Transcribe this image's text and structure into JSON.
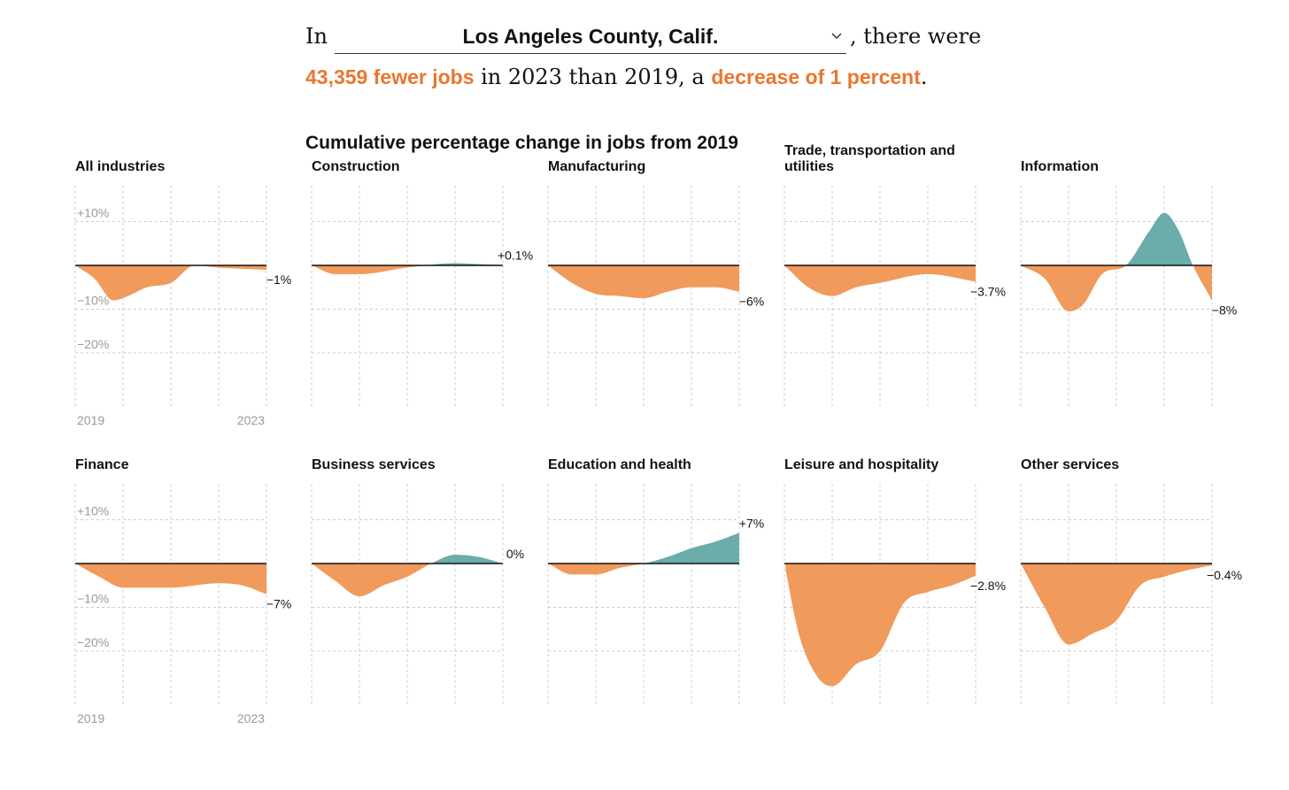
{
  "intro": {
    "prefix": "In",
    "county": "Los Angeles County, Calif.",
    "suffix": ", there were",
    "jobs_change": "43,359 fewer jobs",
    "middle": " in 2023 than 2019, a ",
    "pct_change": "decrease of 1 percent",
    "end": "."
  },
  "chart_title": "Cumulative percentage change in jobs from 2019",
  "colors": {
    "negative": "#f09a5c",
    "positive": "#6aadab",
    "highlight": "#e8772e",
    "grid": "#cccccc"
  },
  "axis": {
    "y_ticks": [
      "+10%",
      "−10%",
      "−20%"
    ],
    "x_ticks": [
      "2019",
      "2023"
    ]
  },
  "chart_data": [
    {
      "type": "area",
      "title": "All industries",
      "end_label": "−1%",
      "x": [
        2019,
        2020,
        2021,
        2022,
        2023
      ],
      "knots": [
        [
          0,
          0
        ],
        [
          0.4,
          -3
        ],
        [
          0.8,
          -8
        ],
        [
          1.1,
          -7
        ],
        [
          1.5,
          -5
        ],
        [
          2,
          -4
        ],
        [
          2.5,
          0
        ],
        [
          3,
          -0.5
        ],
        [
          4,
          -1
        ]
      ],
      "ylim": [
        -33,
        18
      ]
    },
    {
      "type": "area",
      "title": "Construction",
      "end_label": "+0.1%",
      "x": [
        2019,
        2020,
        2021,
        2022,
        2023
      ],
      "knots": [
        [
          0,
          0
        ],
        [
          0.5,
          -2
        ],
        [
          1,
          -2
        ],
        [
          2,
          -0.5
        ],
        [
          3,
          0.5
        ],
        [
          3.5,
          0.3
        ],
        [
          4,
          0.1
        ]
      ],
      "ylim": [
        -33,
        18
      ]
    },
    {
      "type": "area",
      "title": "Manufacturing",
      "end_label": "−6%",
      "x": [
        2019,
        2020,
        2021,
        2022,
        2023
      ],
      "knots": [
        [
          0,
          0
        ],
        [
          0.5,
          -4
        ],
        [
          1,
          -6.5
        ],
        [
          1.5,
          -7
        ],
        [
          2,
          -7.5
        ],
        [
          2.5,
          -6
        ],
        [
          3,
          -5
        ],
        [
          3.5,
          -5
        ],
        [
          4,
          -6
        ]
      ],
      "ylim": [
        -33,
        18
      ]
    },
    {
      "type": "area",
      "title": "Trade, transportation and utilities",
      "end_label": "−3.7%",
      "x": [
        2019,
        2020,
        2021,
        2022,
        2023
      ],
      "knots": [
        [
          0,
          0
        ],
        [
          0.5,
          -5
        ],
        [
          1,
          -7
        ],
        [
          1.5,
          -5
        ],
        [
          2,
          -4
        ],
        [
          3,
          -2
        ],
        [
          4,
          -3.7
        ]
      ],
      "ylim": [
        -33,
        18
      ]
    },
    {
      "type": "area",
      "title": "Information",
      "end_label": "−8%",
      "x": [
        2019,
        2020,
        2021,
        2022,
        2023
      ],
      "knots": [
        [
          0,
          0
        ],
        [
          0.5,
          -3
        ],
        [
          1,
          -10.5
        ],
        [
          1.3,
          -9
        ],
        [
          1.7,
          -2
        ],
        [
          2.2,
          0
        ],
        [
          2.7,
          8
        ],
        [
          3,
          12
        ],
        [
          3.3,
          8
        ],
        [
          3.6,
          0
        ],
        [
          4,
          -8
        ]
      ],
      "ylim": [
        -33,
        18
      ]
    },
    {
      "type": "area",
      "title": "Finance",
      "end_label": "−7%",
      "x": [
        2019,
        2020,
        2021,
        2022,
        2023
      ],
      "knots": [
        [
          0,
          0
        ],
        [
          0.5,
          -3
        ],
        [
          1,
          -5.5
        ],
        [
          2,
          -5.5
        ],
        [
          3,
          -4.5
        ],
        [
          3.5,
          -5
        ],
        [
          4,
          -7
        ]
      ],
      "ylim": [
        -33,
        18
      ]
    },
    {
      "type": "area",
      "title": "Business services",
      "end_label": "0%",
      "x": [
        2019,
        2020,
        2021,
        2022,
        2023
      ],
      "knots": [
        [
          0,
          0
        ],
        [
          0.5,
          -4
        ],
        [
          1,
          -7.5
        ],
        [
          1.5,
          -5
        ],
        [
          2,
          -3
        ],
        [
          2.5,
          0
        ],
        [
          3,
          2
        ],
        [
          3.5,
          1.5
        ],
        [
          4,
          0
        ]
      ],
      "ylim": [
        -33,
        18
      ]
    },
    {
      "type": "area",
      "title": "Education and health",
      "end_label": "+7%",
      "x": [
        2019,
        2020,
        2021,
        2022,
        2023
      ],
      "knots": [
        [
          0,
          0
        ],
        [
          0.5,
          -2.5
        ],
        [
          1,
          -2.5
        ],
        [
          1.5,
          -1
        ],
        [
          2,
          0
        ],
        [
          2.5,
          1.5
        ],
        [
          3,
          3.5
        ],
        [
          3.5,
          5
        ],
        [
          4,
          7
        ]
      ],
      "ylim": [
        -33,
        18
      ]
    },
    {
      "type": "area",
      "title": "Leisure and hospitality",
      "end_label": "−2.8%",
      "x": [
        2019,
        2020,
        2021,
        2022,
        2023
      ],
      "knots": [
        [
          0,
          0
        ],
        [
          0.3,
          -16
        ],
        [
          0.7,
          -26
        ],
        [
          1,
          -28
        ],
        [
          1.5,
          -23
        ],
        [
          2,
          -20
        ],
        [
          2.5,
          -9
        ],
        [
          3,
          -6.5
        ],
        [
          3.5,
          -5
        ],
        [
          4,
          -2.8
        ]
      ],
      "ylim": [
        -33,
        18
      ]
    },
    {
      "type": "area",
      "title": "Other services",
      "end_label": "−0.4%",
      "x": [
        2019,
        2020,
        2021,
        2022,
        2023
      ],
      "knots": [
        [
          0,
          0
        ],
        [
          0.5,
          -10
        ],
        [
          1,
          -18.5
        ],
        [
          1.5,
          -16
        ],
        [
          2,
          -13
        ],
        [
          2.5,
          -5
        ],
        [
          3,
          -3
        ],
        [
          3.5,
          -1.5
        ],
        [
          4,
          -0.4
        ]
      ],
      "ylim": [
        -33,
        18
      ]
    }
  ]
}
